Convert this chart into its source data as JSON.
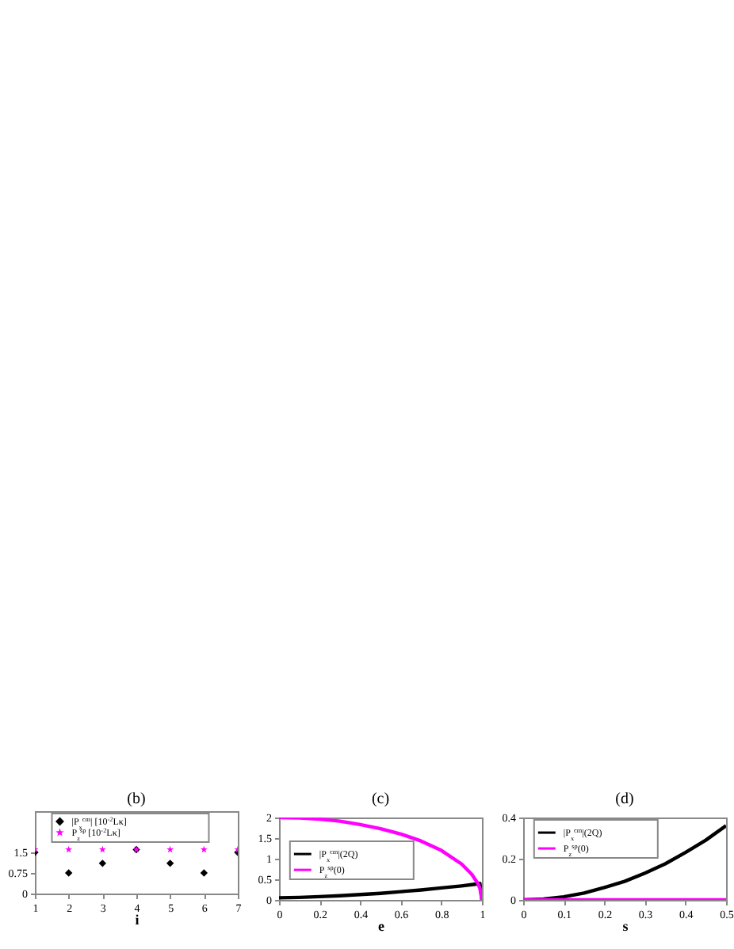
{
  "chart_data": [
    {
      "type": "scatter",
      "title": "(b)",
      "xlabel": "i",
      "x": [
        1,
        2,
        3,
        4,
        5,
        6,
        7
      ],
      "xlim": [
        1,
        7
      ],
      "xticks": [
        1,
        2,
        3,
        4,
        5,
        6,
        7
      ],
      "ylim": [
        0,
        3
      ],
      "yticks": [
        0,
        0.75,
        1.5
      ],
      "legend": "top",
      "series": [
        {
          "name": "|P$_{x}$$^{cm}$| [10$^{-2}$Lκ]",
          "color": "#000000",
          "marker": "diamond",
          "values": [
            1.5,
            0.75,
            1.1,
            1.6,
            1.1,
            0.75,
            1.5
          ]
        },
        {
          "name": "P$_{z}$$^{sp}$ [10$^{-2}$Lκ]",
          "color": "#ff00ff",
          "marker": "star",
          "values": [
            1.6,
            1.6,
            1.6,
            1.6,
            1.6,
            1.6,
            1.6
          ]
        }
      ]
    },
    {
      "type": "line",
      "title": "(c)",
      "xlabel": "e",
      "x": [
        0,
        0.1,
        0.2,
        0.3,
        0.4,
        0.5,
        0.6,
        0.7,
        0.8,
        0.9,
        0.95,
        0.98,
        0.99,
        1
      ],
      "xlim": [
        0,
        1
      ],
      "xticks": [
        0,
        0.2,
        0.4,
        0.6,
        0.8,
        1
      ],
      "ylim": [
        0,
        2
      ],
      "yticks": [
        0,
        0.5,
        1,
        1.5,
        2
      ],
      "legend": "left",
      "series": [
        {
          "name": "|P$_{x}$$^{cm}$|(2Q)",
          "color": "#000000",
          "values": [
            0.05,
            0.06,
            0.08,
            0.1,
            0.13,
            0.16,
            0.2,
            0.24,
            0.29,
            0.34,
            0.37,
            0.39,
            0.4,
            0
          ]
        },
        {
          "name": "P$_{z}$$^{sp}$(0)",
          "color": "#ff00ff",
          "values": [
            2,
            1.99,
            1.96,
            1.91,
            1.83,
            1.73,
            1.6,
            1.43,
            1.2,
            0.87,
            0.62,
            0.4,
            0.28,
            0
          ]
        }
      ]
    },
    {
      "type": "line",
      "title": "(d)",
      "xlabel": "s",
      "x": [
        0,
        0.05,
        0.1,
        0.15,
        0.2,
        0.25,
        0.3,
        0.35,
        0.4,
        0.45,
        0.5
      ],
      "xlim": [
        0,
        0.5
      ],
      "xticks": [
        0,
        0.1,
        0.2,
        0.3,
        0.4,
        0.5
      ],
      "ylim": [
        0,
        0.4
      ],
      "yticks": [
        0,
        0.2,
        0.4
      ],
      "legend": "top left",
      "series": [
        {
          "name": "|P$_{x}$$^{cm}$|(2Q)",
          "color": "#000000",
          "values": [
            0,
            0.004,
            0.015,
            0.033,
            0.06,
            0.09,
            0.13,
            0.175,
            0.23,
            0.29,
            0.36
          ]
        },
        {
          "name": "P$_{z}$$^{sp}$(0)",
          "color": "#ff00ff",
          "values": [
            0,
            0,
            0,
            0,
            0,
            0,
            0,
            0,
            0,
            0,
            0
          ]
        }
      ]
    }
  ]
}
